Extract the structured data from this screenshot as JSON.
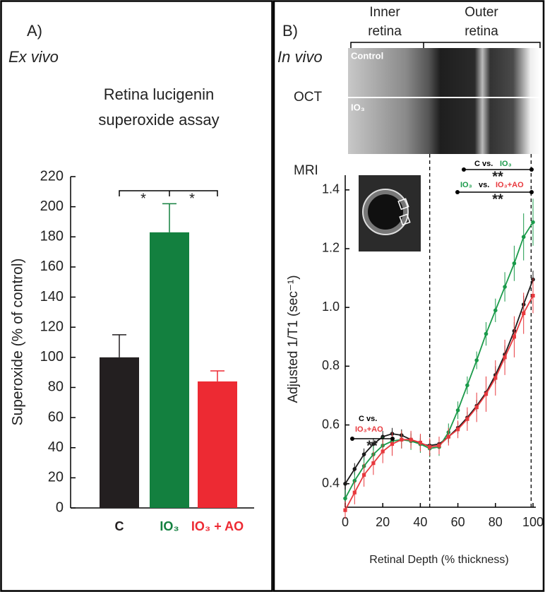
{
  "chart_data": [
    {
      "type": "bar",
      "panel_label": "A)",
      "subtitle": "Ex vivo",
      "title_lines": [
        "Retina lucigenin",
        "superoxide assay"
      ],
      "y_label": "Superoxide (% of control)",
      "categories": [
        "C",
        "IO₃",
        "IO₃ + AO"
      ],
      "values": [
        100,
        183,
        84
      ],
      "errors": [
        15,
        19,
        7
      ],
      "colors": [
        "#231f20",
        "#13803f",
        "#ed2a33"
      ],
      "ylim": [
        0,
        220
      ],
      "yticks": [
        0,
        20,
        40,
        60,
        80,
        100,
        120,
        140,
        160,
        180,
        200,
        220
      ],
      "significance": [
        "*",
        "*"
      ]
    },
    {
      "type": "line",
      "panel_label": "B)",
      "subtitle": "In vivo",
      "region_labels": [
        [
          "Inner",
          "retina"
        ],
        [
          "Outer",
          "retina"
        ]
      ],
      "oct_label": "OCT",
      "image_labels": [
        "Control",
        "IO₃"
      ],
      "mri_label": "MRI",
      "x_label": "Retinal Depth (% thickness)",
      "y_label": "Adjusted 1/T1 (sec⁻¹)",
      "x": [
        0,
        5,
        10,
        15,
        20,
        25,
        30,
        35,
        40,
        45,
        50,
        55,
        60,
        65,
        70,
        75,
        80,
        85,
        90,
        95,
        100
      ],
      "series": [
        {
          "color": "#1a1a1a",
          "marker": "circle",
          "values": [
            0.4,
            0.45,
            0.5,
            0.535,
            0.56,
            0.57,
            0.565,
            0.55,
            0.535,
            0.53,
            0.535,
            0.56,
            0.59,
            0.625,
            0.665,
            0.71,
            0.77,
            0.84,
            0.92,
            1.01,
            1.095
          ],
          "errors": [
            0.02,
            0.02,
            0.02,
            0.02,
            0.02,
            0.02,
            0.02,
            0.02,
            0.02,
            0.02,
            0.02,
            0.02,
            0.02,
            0.02,
            0.02,
            0.02,
            0.03,
            0.03,
            0.03,
            0.03,
            0.03
          ]
        },
        {
          "color": "#1a9a4a",
          "marker": "circle",
          "values": [
            0.35,
            0.41,
            0.46,
            0.5,
            0.53,
            0.545,
            0.55,
            0.545,
            0.535,
            0.52,
            0.525,
            0.575,
            0.65,
            0.735,
            0.82,
            0.91,
            0.99,
            1.07,
            1.15,
            1.24,
            1.29
          ],
          "errors": [
            0.03,
            0.03,
            0.03,
            0.03,
            0.03,
            0.03,
            0.03,
            0.03,
            0.03,
            0.03,
            0.03,
            0.03,
            0.03,
            0.03,
            0.03,
            0.04,
            0.04,
            0.05,
            0.06,
            0.08,
            0.08
          ]
        },
        {
          "color": "#e8393e",
          "marker": "square",
          "values": [
            0.31,
            0.37,
            0.43,
            0.47,
            0.51,
            0.535,
            0.55,
            0.55,
            0.54,
            0.525,
            0.53,
            0.56,
            0.585,
            0.62,
            0.66,
            0.705,
            0.76,
            0.83,
            0.9,
            0.98,
            1.04
          ],
          "errors": [
            0.03,
            0.04,
            0.04,
            0.04,
            0.04,
            0.04,
            0.03,
            0.03,
            0.03,
            0.03,
            0.03,
            0.03,
            0.03,
            0.04,
            0.05,
            0.06,
            0.06,
            0.06,
            0.07,
            0.07,
            0.06
          ]
        }
      ],
      "xlim": [
        0,
        100
      ],
      "ylim": [
        0.32,
        1.45
      ],
      "xticks": [
        0,
        20,
        40,
        60,
        80,
        100
      ],
      "yticks": [
        0.4,
        0.6,
        0.8,
        {
          "value": 1,
          "label": "1.0"
        },
        1.2,
        1.4
      ],
      "vlines": [
        45,
        99
      ],
      "comparisons": [
        {
          "parts": [
            {
              "text": "C vs.",
              "color": "#000000"
            },
            {
              "text": "IO₃",
              "color": "#1a9a4a"
            }
          ],
          "stars": "**"
        },
        {
          "parts": [
            {
              "text": "IO₃",
              "color": "#1a9a4a"
            },
            {
              "text": "vs.",
              "color": "#000000"
            },
            {
              "text": "IO₃+AO",
              "color": "#e8393e"
            }
          ],
          "stars": "**"
        },
        {
          "parts": [
            {
              "text": "C vs.",
              "color": "#000000"
            },
            {
              "text": "IO₃+AO",
              "color": "#e8393e"
            }
          ],
          "stars": "**"
        }
      ]
    }
  ]
}
